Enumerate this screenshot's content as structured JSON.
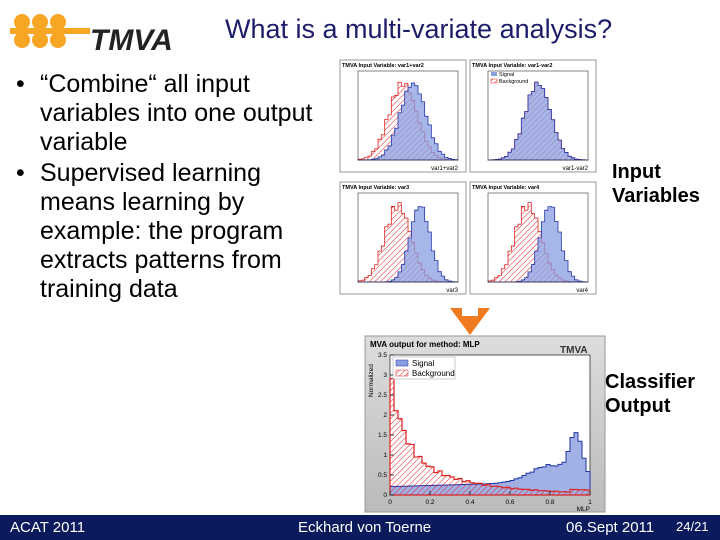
{
  "header": {
    "logo": "TMVA",
    "title": "What is a multi-variate analysis?"
  },
  "bullets": [
    "“Combine“ all input variables into one output variable",
    "Supervised learning means learning by example: the program extracts patterns from training data"
  ],
  "labels": {
    "input": "Input Variables",
    "output": "Classifier Output"
  },
  "input_plots": [
    {
      "title": "TMVA Input Variable: var1+var2",
      "xlabel": "var1+var2"
    },
    {
      "title": "TMVA Input Variable: var1-var2",
      "xlabel": "var1-var2"
    },
    {
      "title": "TMVA Input Variable: var3",
      "xlabel": "var3"
    },
    {
      "title": "TMVA Input Variable: var4",
      "xlabel": "var4"
    }
  ],
  "legend": [
    "Signal",
    "Background"
  ],
  "output_plot": {
    "title": "MVA output for method: MLP",
    "xlabel": "MLP",
    "ylabel": "Normalized",
    "xticks": [
      0,
      0.2,
      0.4,
      0.6,
      0.8,
      1
    ],
    "yticks": [
      0,
      0.5,
      1,
      1.5,
      2,
      2.5,
      3,
      3.5
    ]
  },
  "footer": {
    "event": "ACAT 2011",
    "author": "Eckhard von Toerne",
    "date": "06.Sept 2011",
    "page": "24/21"
  }
}
